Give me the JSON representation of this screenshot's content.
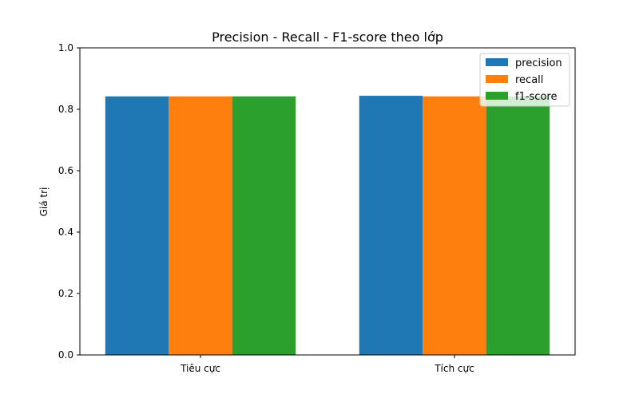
{
  "chart_data": {
    "type": "bar",
    "title": "Precision - Recall - F1-score theo lớp",
    "xlabel": "",
    "ylabel": "Giá trị",
    "categories": [
      "Tiêu cực",
      "Tích cực"
    ],
    "series": [
      {
        "name": "precision",
        "values": [
          0.842,
          0.844
        ],
        "color": "#1f77b4"
      },
      {
        "name": "recall",
        "values": [
          0.842,
          0.842
        ],
        "color": "#ff7f0e"
      },
      {
        "name": "f1-score",
        "values": [
          0.842,
          0.842
        ],
        "color": "#2ca02c"
      }
    ],
    "ylim": [
      0,
      1.0
    ],
    "yticks": [
      "0.0",
      "0.2",
      "0.4",
      "0.6",
      "0.8",
      "1.0"
    ],
    "grid": false,
    "legend_position": "top-right"
  }
}
